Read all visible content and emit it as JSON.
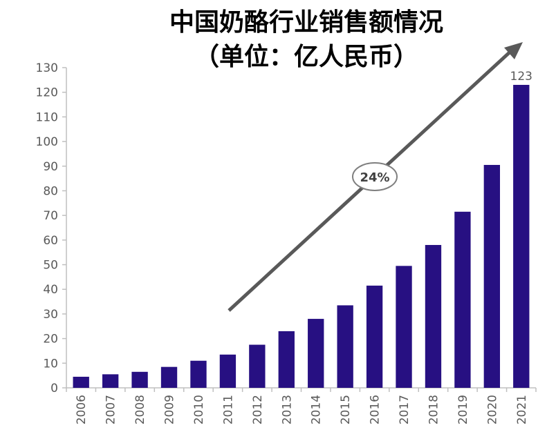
{
  "chart_data": {
    "type": "bar",
    "title": "中国奶酪行业销售额情况",
    "subtitle": "（单位：亿人民币）",
    "xlabel": "",
    "ylabel": "",
    "categories": [
      "2006",
      "2007",
      "2008",
      "2009",
      "2010",
      "2011",
      "2012",
      "2013",
      "2014",
      "2015",
      "2016",
      "2017",
      "2018",
      "2019",
      "2020",
      "2021"
    ],
    "values": [
      4.5,
      5.5,
      6.5,
      8.5,
      11,
      13.5,
      17.5,
      23,
      28,
      33.5,
      41.5,
      49.5,
      58,
      71.5,
      90.5,
      123
    ],
    "ylim": [
      0,
      130
    ],
    "yticks": [
      0,
      10,
      20,
      30,
      40,
      50,
      60,
      70,
      80,
      90,
      100,
      110,
      120,
      130
    ],
    "data_labels": [
      {
        "category": "2021",
        "text": "123"
      }
    ],
    "annotation": {
      "text": "24%",
      "arrow": "up-right"
    },
    "grid": false,
    "legend": "none",
    "colors": {
      "bar": "#271082",
      "arrow": "#595959",
      "axis": "#bfbfbf"
    }
  }
}
